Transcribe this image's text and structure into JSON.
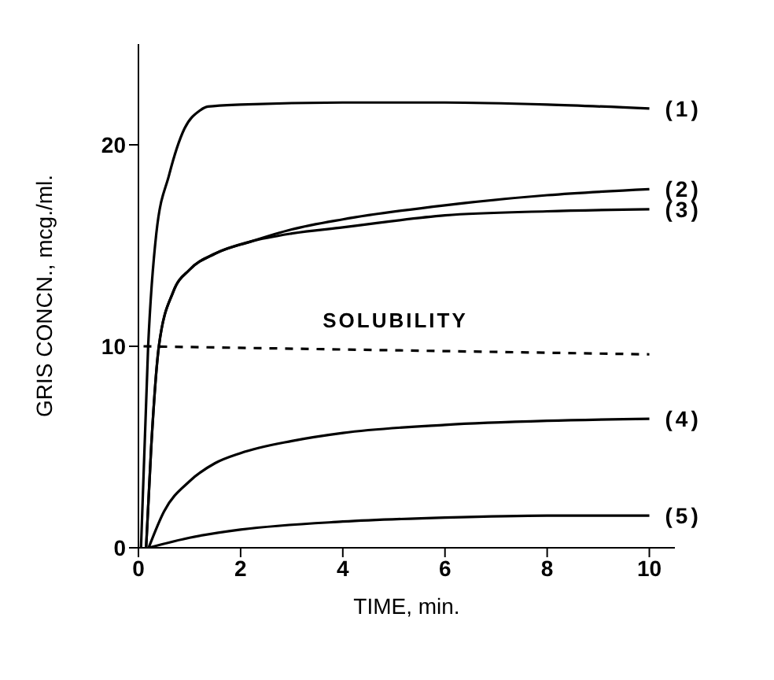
{
  "chart_data": {
    "type": "line",
    "xlabel": "TIME, min.",
    "ylabel": "GRIS CONCN., mcg./ml.",
    "xlim": [
      0,
      10.5
    ],
    "ylim": [
      0,
      25
    ],
    "xticks": [
      0,
      2,
      4,
      6,
      8,
      10
    ],
    "yticks": [
      0,
      10,
      20
    ],
    "marker": "none",
    "line_style": "solid",
    "series": [
      {
        "name": "(1)",
        "color": "#000000",
        "x": [
          0.05,
          0.19,
          0.35,
          0.6,
          0.9,
          1.2,
          1.36,
          2,
          4,
          6,
          8,
          10
        ],
        "values": [
          0,
          10,
          15.6,
          18.5,
          20.8,
          21.7,
          21.9,
          22,
          22.1,
          22.1,
          22,
          21.8
        ]
      },
      {
        "name": "(2)",
        "color": "#000000",
        "x": [
          0.15,
          0.25,
          0.4,
          0.68,
          1,
          1.5,
          2.2,
          3,
          4,
          6,
          8,
          10
        ],
        "values": [
          0,
          5,
          10,
          12.7,
          13.8,
          14.6,
          15.2,
          15.8,
          16.3,
          17,
          17.5,
          17.8
        ]
      },
      {
        "name": "(3)",
        "color": "#000000",
        "x": [
          0.15,
          0.25,
          0.4,
          0.68,
          1,
          1.5,
          2.2,
          3,
          4,
          6,
          8,
          10
        ],
        "values": [
          0,
          5,
          10,
          12.7,
          13.8,
          14.6,
          15.2,
          15.6,
          15.9,
          16.5,
          16.7,
          16.8
        ]
      },
      {
        "name": "(4)",
        "color": "#000000",
        "x": [
          0.2,
          0.5,
          1,
          1.5,
          2,
          3,
          4,
          6,
          8,
          10
        ],
        "values": [
          0,
          1.8,
          3.3,
          4.2,
          4.7,
          5.3,
          5.7,
          6.1,
          6.3,
          6.4
        ]
      },
      {
        "name": "(5)",
        "color": "#000000",
        "x": [
          0.2,
          1,
          2,
          4,
          6,
          8,
          10
        ],
        "values": [
          0,
          0.5,
          0.9,
          1.3,
          1.5,
          1.6,
          1.6
        ]
      },
      {
        "name": "SOLUBILITY",
        "color": "#000000",
        "line_style": "dashed",
        "x": [
          0.1,
          10
        ],
        "values": [
          10,
          9.6
        ]
      }
    ]
  }
}
